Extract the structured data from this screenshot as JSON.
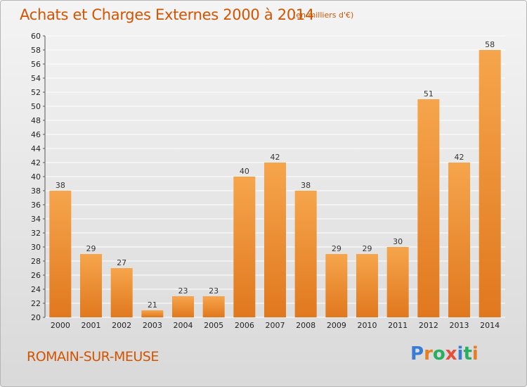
{
  "header": {
    "title": "Achats et Charges Externes 2000 à 2014",
    "subtitle": "(en milliers d'€)"
  },
  "footer": {
    "commune": "ROMAIN-SUR-MEUSE",
    "logo_letters": [
      "P",
      "r",
      "o",
      "x",
      "i",
      "t",
      "i"
    ]
  },
  "colors": {
    "bar_light": "#f6a54c",
    "bar_dark": "#e0781e",
    "title": "#d35400",
    "grid": "#ffffff",
    "logo": [
      "#3a7bd5",
      "#e67e22",
      "#27ae60",
      "#e74c3c",
      "#3a7bd5",
      "#27ae60",
      "#e67e22"
    ]
  },
  "chart_data": {
    "type": "bar",
    "title": "Achats et Charges Externes 2000 à 2014",
    "subtitle": "(en milliers d'€)",
    "categories": [
      "2000",
      "2001",
      "2002",
      "2003",
      "2004",
      "2005",
      "2006",
      "2007",
      "2008",
      "2009",
      "2010",
      "2011",
      "2012",
      "2013",
      "2014"
    ],
    "values": [
      38,
      29,
      27,
      21,
      23,
      23,
      40,
      42,
      38,
      29,
      29,
      30,
      51,
      42,
      58
    ],
    "ylim": [
      20,
      60
    ],
    "ytick_step": 2,
    "grid": true,
    "xlabel": "",
    "ylabel": ""
  }
}
